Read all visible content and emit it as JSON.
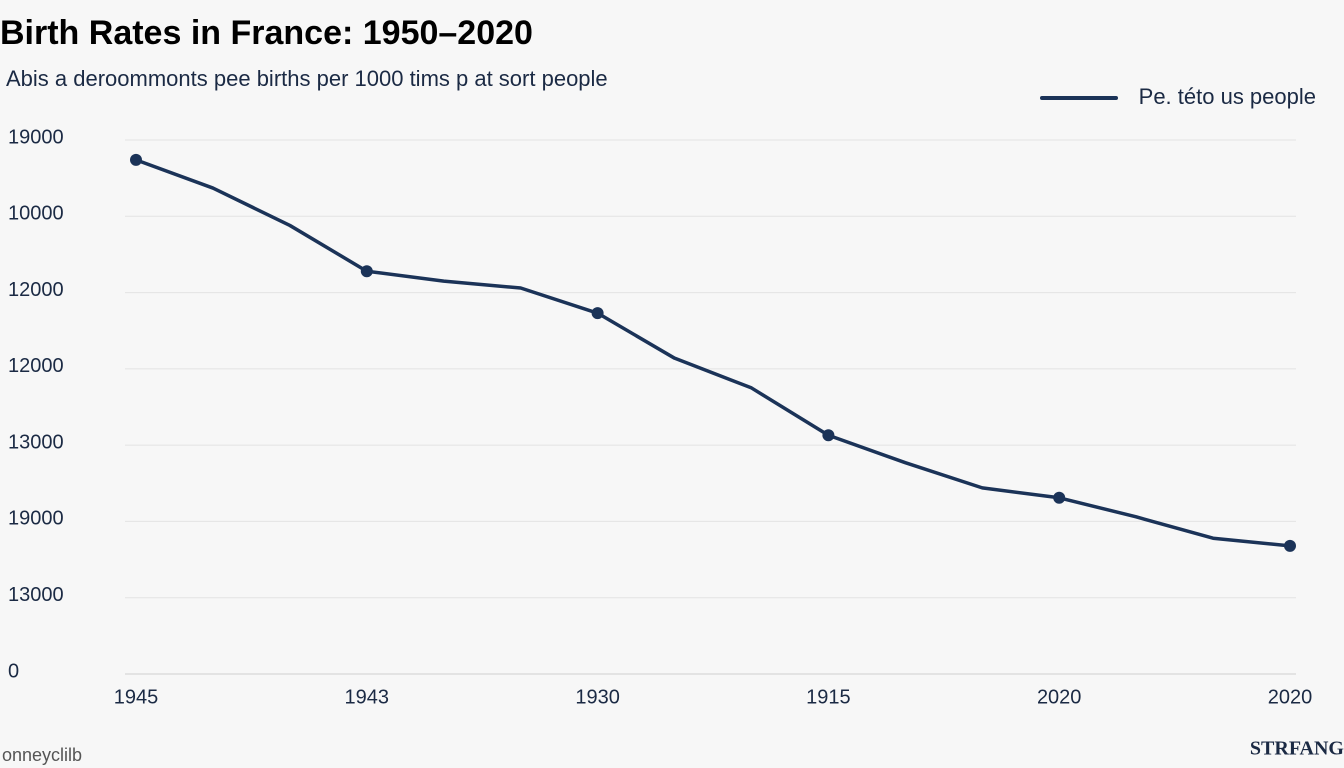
{
  "chart_data": {
    "type": "line",
    "title": "Birth Rates in France: 1950–2020",
    "subtitle": "Abis a deroommonts pee births per 1000 tims p at sort people",
    "categories": [
      "1945",
      null,
      null,
      "1943",
      null,
      null,
      "1930",
      null,
      null,
      "1915",
      null,
      null,
      "2020",
      null,
      null,
      "2020"
    ],
    "series": [
      {
        "name": "Pe. této us people",
        "color": "#1b3358",
        "values": [
          6.74,
          6.37,
          5.88,
          5.28,
          5.15,
          5.06,
          4.73,
          4.14,
          3.75,
          3.13,
          2.77,
          2.44,
          2.31,
          2.06,
          1.78,
          1.68
        ]
      }
    ],
    "ylim": [
      0,
      7
    ],
    "yticks": [
      {
        "value": 0,
        "label": "0"
      },
      {
        "value": 1,
        "label": "13000"
      },
      {
        "value": 2,
        "label": "19000"
      },
      {
        "value": 3,
        "label": "13000"
      },
      {
        "value": 4,
        "label": "12000"
      },
      {
        "value": 5,
        "label": "12000"
      },
      {
        "value": 6,
        "label": "10000"
      },
      {
        "value": 7,
        "label": "19000"
      }
    ],
    "grid": true,
    "legend": "top-right",
    "footer_left": "onneyclilb",
    "footer_right": "STRFANG"
  }
}
